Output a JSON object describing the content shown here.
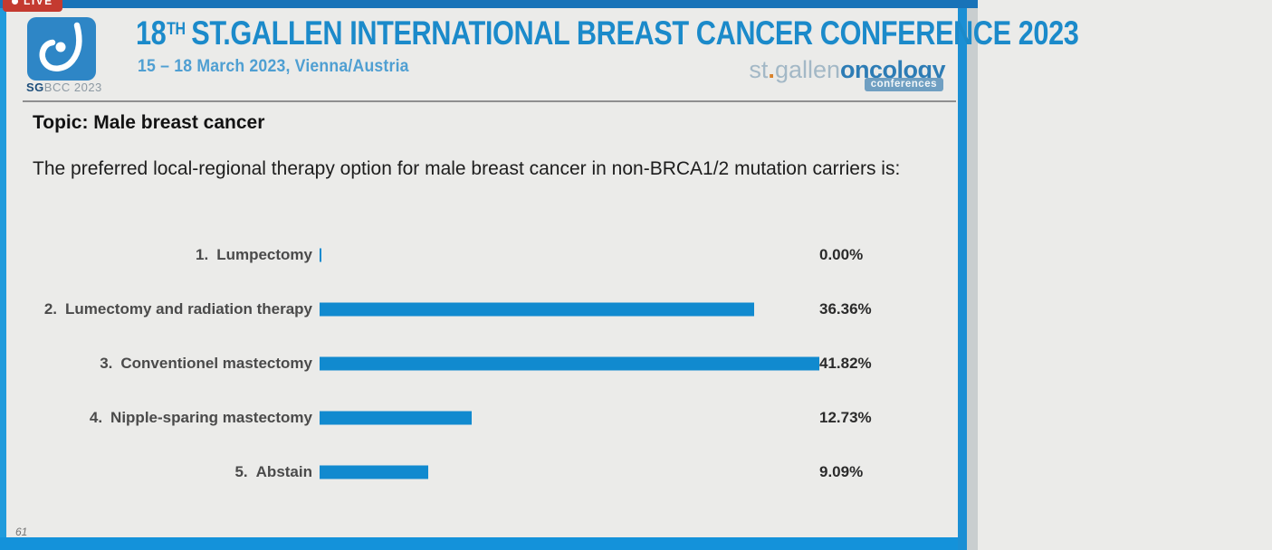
{
  "frame": {
    "live_badge_label": "LIVE",
    "slide_number": "61"
  },
  "header": {
    "logo_caption": {
      "bold": "SG",
      "rest": "BCC 2023"
    },
    "title_prefix": "18",
    "title_superscript": "TH",
    "title_rest": "ST.GALLEN INTERNATIONAL BREAST CANCER CONFERENCE 2023",
    "subtitle": "15 – 18 March 2023, Vienna/Austria",
    "brand": {
      "st": "st",
      "dot": ".",
      "gallen": "gallen",
      "oncology": "oncology",
      "conferences": "conferences"
    }
  },
  "content": {
    "topic": "Topic: Male breast cancer",
    "question": "The preferred local-regional therapy option for male breast cancer in non-BRCA1/2 mutation carriers is:"
  },
  "chart_data": {
    "type": "bar",
    "orientation": "horizontal",
    "numbers": [
      "1.",
      "2.",
      "3.",
      "4.",
      "5."
    ],
    "categories": [
      "Lumpectomy",
      "Lumectomy and radiation therapy",
      "Conventionel mastectomy",
      "Nipple-sparing mastectomy",
      "Abstain"
    ],
    "values": [
      0.0,
      36.36,
      41.82,
      12.73,
      9.09
    ],
    "value_labels": [
      "0.00%",
      "36.36%",
      "41.82%",
      "12.73%",
      "9.09%"
    ],
    "xlim": [
      0,
      41.82
    ],
    "grid": false,
    "legend": false,
    "bar_color": "#118acf"
  },
  "colors": {
    "bar_blue": "#118acf",
    "title_blue": "#1b8aca",
    "subtitle_blue": "#4f9fd2",
    "frame_blue": "#1492da",
    "live_red": "#c43a30",
    "slide_bg": "#ebebe9"
  }
}
